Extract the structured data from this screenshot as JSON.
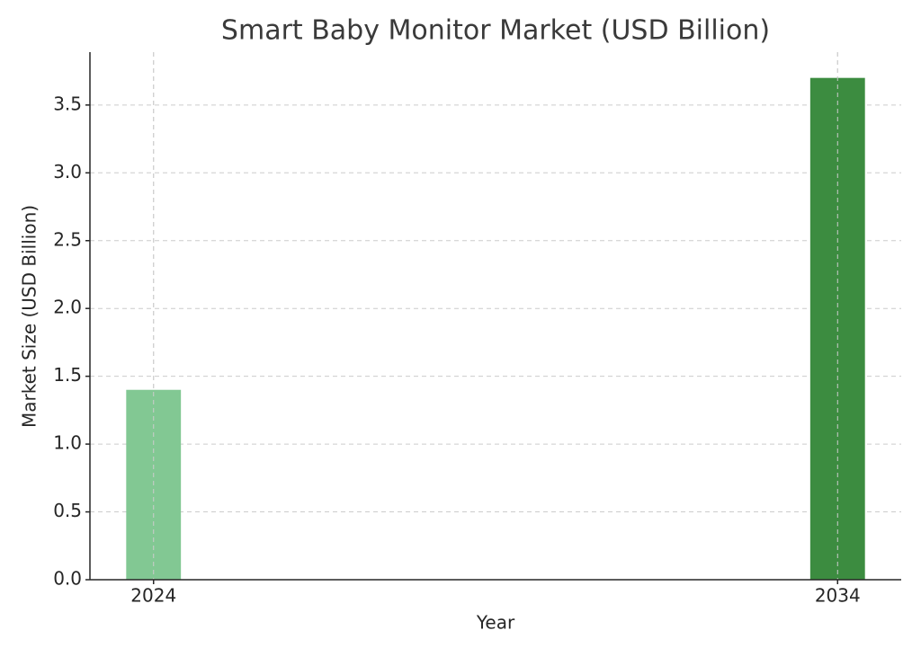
{
  "chart_data": {
    "type": "bar",
    "title": "Smart Baby Monitor Market (USD Billion)",
    "x_label": "Year",
    "y_label": "Market Size (USD Billion)",
    "x": [
      2024,
      2034
    ],
    "values": [
      1.4,
      3.7
    ],
    "colors": [
      "#82c893",
      "#3c8c40"
    ],
    "xlim": [
      2023.07,
      2034.93
    ],
    "xticks": [
      2024,
      2034
    ],
    "ylim": [
      0,
      3.89
    ],
    "yticks": [
      {
        "value": 0,
        "label": "0.0"
      },
      0.5,
      {
        "value": 1,
        "label": "1.0"
      },
      1.5,
      {
        "value": 2,
        "label": "2.0"
      },
      2.5,
      {
        "value": 3,
        "label": "3.0"
      },
      3.5
    ],
    "grid": true
  }
}
